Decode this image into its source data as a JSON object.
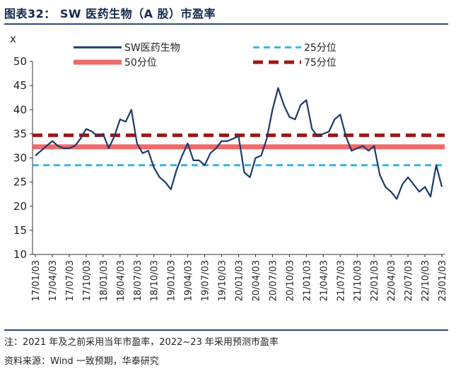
{
  "figure_title": "图表32：  SW 医药生物（A 股）市盈率",
  "notes": {
    "note1": "注：2021 年及之前采用当年市盈率，2022~23 年采用预测市盈率",
    "source": "资料来源：Wind 一致预期，华泰研究"
  },
  "colors": {
    "series": "#1b3a6b",
    "p25": "#33b5e5",
    "p50": "#f06a6a",
    "p75": "#a01717"
  },
  "chart_data": {
    "type": "line",
    "title": "SW 医药生物（A 股）市盈率",
    "ylabel": "x",
    "xlabel": "",
    "ylim": [
      10,
      50
    ],
    "yticks": [
      10,
      15,
      20,
      25,
      30,
      35,
      40,
      45,
      50
    ],
    "grid": false,
    "legend_position": "top",
    "xtick_labels": [
      "17/01/03",
      "17/04/03",
      "17/07/03",
      "17/10/03",
      "18/01/03",
      "18/04/03",
      "18/07/03",
      "18/10/03",
      "19/01/03",
      "19/04/03",
      "19/07/03",
      "19/10/03",
      "20/01/03",
      "20/04/03",
      "20/07/03",
      "20/10/03",
      "21/01/03",
      "21/04/03",
      "21/07/03",
      "21/10/03",
      "22/01/03",
      "22/04/03",
      "22/07/03",
      "22/10/03",
      "23/01/03"
    ],
    "series": [
      {
        "name": "SW医药生物",
        "style": "solid",
        "x": [
          "17/01/03",
          "17/02/03",
          "17/03/03",
          "17/04/03",
          "17/05/03",
          "17/06/03",
          "17/07/03",
          "17/08/03",
          "17/09/03",
          "17/10/03",
          "17/11/03",
          "17/12/03",
          "18/01/03",
          "18/02/03",
          "18/03/03",
          "18/04/03",
          "18/05/03",
          "18/06/03",
          "18/07/03",
          "18/08/03",
          "18/09/03",
          "18/10/03",
          "18/11/03",
          "18/12/03",
          "19/01/03",
          "19/02/03",
          "19/03/03",
          "19/04/03",
          "19/05/03",
          "19/06/03",
          "19/07/03",
          "19/08/03",
          "19/09/03",
          "19/10/03",
          "19/11/03",
          "19/12/03",
          "20/01/03",
          "20/02/03",
          "20/03/03",
          "20/04/03",
          "20/05/03",
          "20/06/03",
          "20/07/03",
          "20/08/03",
          "20/09/03",
          "20/10/03",
          "20/11/03",
          "20/12/03",
          "21/01/03",
          "21/02/03",
          "21/03/03",
          "21/04/03",
          "21/05/03",
          "21/06/03",
          "21/07/03",
          "21/08/03",
          "21/09/03",
          "21/10/03",
          "21/11/03",
          "21/12/03",
          "22/01/03",
          "22/02/03",
          "22/03/03",
          "22/04/03",
          "22/05/03",
          "22/06/03",
          "22/07/03",
          "22/08/03",
          "22/09/03",
          "22/10/03",
          "22/11/03",
          "22/12/03",
          "23/01/03"
        ],
        "values": [
          30.5,
          31.5,
          32.5,
          33.5,
          32.5,
          32.0,
          32.0,
          32.5,
          34.0,
          36.0,
          35.5,
          34.5,
          35.0,
          32.0,
          34.5,
          38.0,
          37.5,
          40.0,
          33.0,
          31.0,
          31.5,
          28.0,
          26.0,
          25.0,
          23.5,
          27.5,
          30.5,
          33.0,
          29.5,
          29.5,
          28.5,
          31.0,
          32.0,
          33.5,
          33.5,
          34.0,
          34.5,
          27.0,
          26.0,
          30.0,
          30.5,
          34.0,
          40.0,
          44.5,
          41.0,
          38.5,
          38.0,
          41.0,
          42.0,
          36.0,
          34.5,
          35.0,
          35.5,
          38.0,
          39.0,
          34.5,
          31.5,
          32.0,
          32.5,
          31.5,
          32.5,
          26.5,
          24.0,
          23.0,
          21.5,
          24.5,
          26.0,
          24.5,
          23.0,
          24.0,
          22.0,
          28.5,
          24.0
        ]
      },
      {
        "name": "25分位",
        "style": "dashed",
        "value": 28.5
      },
      {
        "name": "50分位",
        "style": "solid-thick",
        "value": 32.3
      },
      {
        "name": "75分位",
        "style": "dashed-thick",
        "value": 34.7
      }
    ]
  }
}
